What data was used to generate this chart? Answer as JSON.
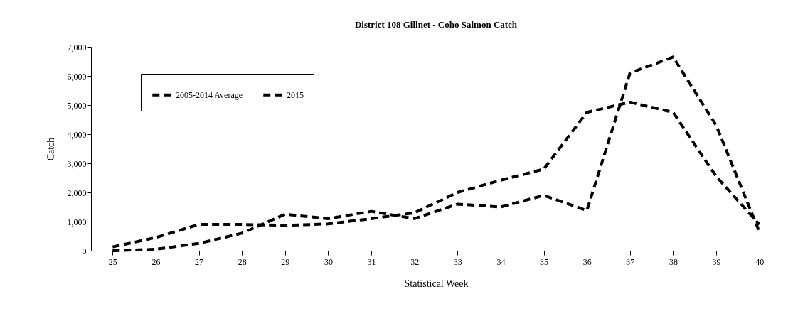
{
  "chart_data": {
    "type": "line",
    "title": "District 108 Gillnet - Coho  Salmon Catch",
    "xlabel": "Statistical Week",
    "ylabel": "Catch",
    "categories": [
      "25",
      "26",
      "27",
      "28",
      "29",
      "30",
      "31",
      "32",
      "33",
      "34",
      "35",
      "36",
      "37",
      "38",
      "39",
      "40"
    ],
    "series": [
      {
        "name": "2005-2014 Average",
        "color": "#000000",
        "line_style": "dashed",
        "values": [
          130,
          450,
          900,
          900,
          870,
          920,
          1100,
          1300,
          2000,
          2420,
          2800,
          4750,
          5100,
          4750,
          2550,
          900
        ]
      },
      {
        "name": "2015",
        "color": "#000000",
        "line_style": "dashed",
        "values": [
          0,
          50,
          250,
          600,
          1250,
          1100,
          1350,
          1100,
          1600,
          1500,
          1900,
          1380,
          6100,
          6650,
          4300,
          650
        ]
      }
    ],
    "ylim": [
      0,
      7000
    ],
    "yticks": [
      0,
      {
        "value": 1000,
        "label": "1,000"
      },
      {
        "value": 2000,
        "label": "2,000"
      },
      {
        "value": 3000,
        "label": "3,000"
      },
      {
        "value": 4000,
        "label": "4,000"
      },
      {
        "value": 5000,
        "label": "5,000"
      },
      {
        "value": 6000,
        "label": "6,000"
      },
      {
        "value": 7000,
        "label": "7,000"
      }
    ],
    "grid": false,
    "legend": "top left",
    "marker": "none"
  }
}
